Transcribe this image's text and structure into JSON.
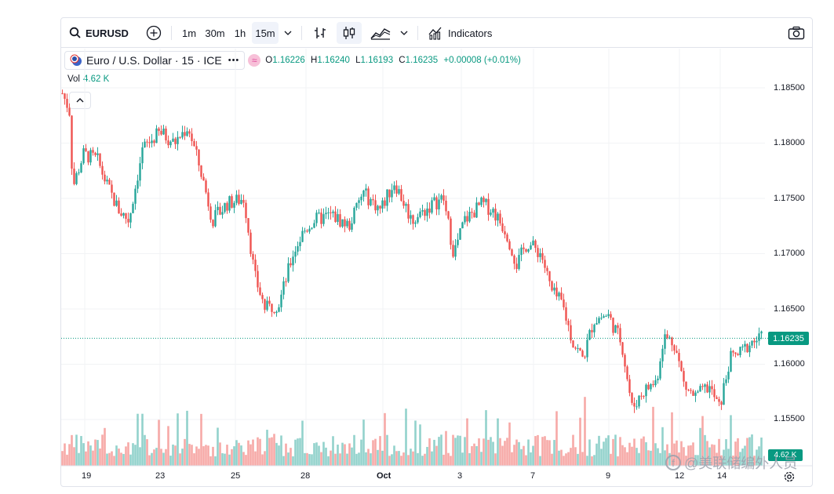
{
  "toolbar": {
    "symbol": "EURUSD",
    "timeframes": [
      "1m",
      "30m",
      "1h",
      "15m"
    ],
    "active_timeframe": "15m",
    "indicators_label": "Indicators"
  },
  "legend": {
    "title": "Euro / U.S. Dollar · 15 · ICE",
    "o_key": "O",
    "o_val": "1.16226",
    "h_key": "H",
    "h_val": "1.16240",
    "l_key": "L",
    "l_val": "1.16193",
    "c_key": "C",
    "c_val": "1.16235",
    "change": "+0.00008 (+0.01%)",
    "vol_label": "Vol",
    "vol_value": "4.62 K"
  },
  "price_axis": [
    "1.18500",
    "1.18000",
    "1.17500",
    "1.17000",
    "1.16500",
    "1.16000",
    "1.15500"
  ],
  "last_price_tag": "1.16235",
  "vol_tag": "4.62 K",
  "time_axis": [
    "19",
    "23",
    "25",
    "28",
    "Oct",
    "3",
    "7",
    "9",
    "12",
    "14"
  ],
  "watermark": "@美联储编外人员",
  "colors": {
    "up": "#26a69a",
    "down": "#ef5350",
    "accent": "#089981",
    "border": "#e0e3eb"
  },
  "chart_data": {
    "type": "candlestick",
    "symbol": "EURUSD",
    "interval": "15",
    "ylim": [
      1.152,
      1.187
    ],
    "close_path": [
      [
        0,
        1.1845
      ],
      [
        0.01,
        1.183
      ],
      [
        0.015,
        1.176
      ],
      [
        0.03,
        1.179
      ],
      [
        0.05,
        1.1785
      ],
      [
        0.065,
        1.176
      ],
      [
        0.08,
        1.174
      ],
      [
        0.095,
        1.173
      ],
      [
        0.115,
        1.1795
      ],
      [
        0.14,
        1.181
      ],
      [
        0.16,
        1.18
      ],
      [
        0.18,
        1.1815
      ],
      [
        0.2,
        1.177
      ],
      [
        0.215,
        1.173
      ],
      [
        0.235,
        1.1745
      ],
      [
        0.26,
        1.175
      ],
      [
        0.275,
        1.168
      ],
      [
        0.29,
        1.165
      ],
      [
        0.31,
        1.1655
      ],
      [
        0.33,
        1.17
      ],
      [
        0.345,
        1.172
      ],
      [
        0.36,
        1.173
      ],
      [
        0.385,
        1.1735
      ],
      [
        0.41,
        1.1725
      ],
      [
        0.43,
        1.1755
      ],
      [
        0.455,
        1.174
      ],
      [
        0.475,
        1.1765
      ],
      [
        0.5,
        1.173
      ],
      [
        0.53,
        1.1745
      ],
      [
        0.545,
        1.175
      ],
      [
        0.56,
        1.17
      ],
      [
        0.575,
        1.173
      ],
      [
        0.6,
        1.1745
      ],
      [
        0.615,
        1.174
      ],
      [
        0.635,
        1.172
      ],
      [
        0.65,
        1.169
      ],
      [
        0.665,
        1.171
      ],
      [
        0.685,
        1.17
      ],
      [
        0.7,
        1.1665
      ],
      [
        0.715,
        1.1655
      ],
      [
        0.73,
        1.162
      ],
      [
        0.745,
        1.1605
      ],
      [
        0.76,
        1.164
      ],
      [
        0.78,
        1.1645
      ],
      [
        0.8,
        1.162
      ],
      [
        0.815,
        1.156
      ],
      [
        0.83,
        1.1575
      ],
      [
        0.85,
        1.1585
      ],
      [
        0.86,
        1.1625
      ],
      [
        0.875,
        1.162
      ],
      [
        0.89,
        1.158
      ],
      [
        0.905,
        1.157
      ],
      [
        0.925,
        1.158
      ],
      [
        0.94,
        1.156
      ],
      [
        0.955,
        1.1605
      ],
      [
        0.97,
        1.161
      ],
      [
        0.985,
        1.162
      ],
      [
        1.0,
        1.16235
      ]
    ]
  }
}
